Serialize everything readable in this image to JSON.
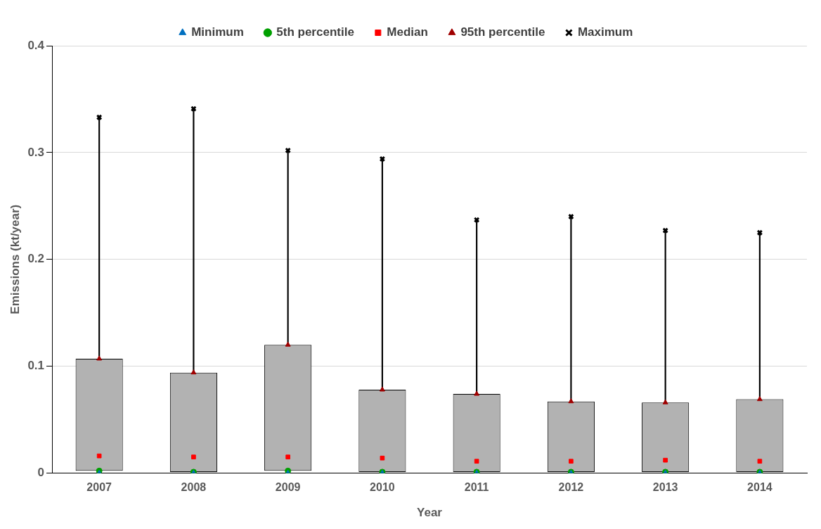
{
  "chart_data": {
    "type": "bar",
    "xlabel": "Year",
    "ylabel": "Emissions (kt/year)",
    "categories": [
      "2007",
      "2008",
      "2009",
      "2010",
      "2011",
      "2012",
      "2013",
      "2014"
    ],
    "series": [
      {
        "color": "#b2b2b2",
        "base": [
          0.002,
          0.001,
          0.002,
          0.001,
          0.001,
          0.001,
          0.001,
          0.001
        ],
        "values": [
          0.105,
          0.093,
          0.118,
          0.077,
          0.073,
          0.066,
          0.065,
          0.068
        ]
      },
      {
        "color": "#000000",
        "base": [
          0.107,
          0.094,
          0.12,
          0.078,
          0.074,
          0.067,
          0.066,
          0.069
        ],
        "values": [
          0.226,
          0.247,
          0.182,
          0.216,
          0.163,
          0.173,
          0.161,
          0.156
        ]
      },
      {
        "type": "scatter",
        "name": "Minimum",
        "color": "#0070c0",
        "marker": "triangle",
        "values": [
          0,
          0,
          0,
          0,
          0,
          0,
          0,
          0
        ]
      },
      {
        "type": "scatter",
        "name": "5th percentile",
        "color": "#00a000",
        "marker": "circle",
        "values": [
          0.002,
          0.001,
          0.002,
          0.001,
          0.001,
          0.001,
          0.001,
          0.001
        ]
      },
      {
        "type": "scatter",
        "name": "Median",
        "color": "#ff0000",
        "marker": "square",
        "values": [
          0.016,
          0.015,
          0.015,
          0.014,
          0.011,
          0.011,
          0.012,
          0.011
        ]
      },
      {
        "type": "scatter",
        "name": "95th percentile",
        "color": "#a00000",
        "marker": "triangle",
        "values": [
          0.107,
          0.094,
          0.12,
          0.078,
          0.074,
          0.067,
          0.066,
          0.069
        ]
      },
      {
        "type": "scatter",
        "name": "Maximum",
        "color": "#000000",
        "marker": "cross",
        "values": [
          0.333,
          0.341,
          0.302,
          0.294,
          0.237,
          0.24,
          0.227,
          0.225
        ]
      }
    ],
    "ylim": [
      0,
      0.4
    ],
    "yticks": [
      0,
      0.1,
      0.2,
      0.3,
      0.4
    ],
    "grid": "y",
    "legend": "top"
  }
}
